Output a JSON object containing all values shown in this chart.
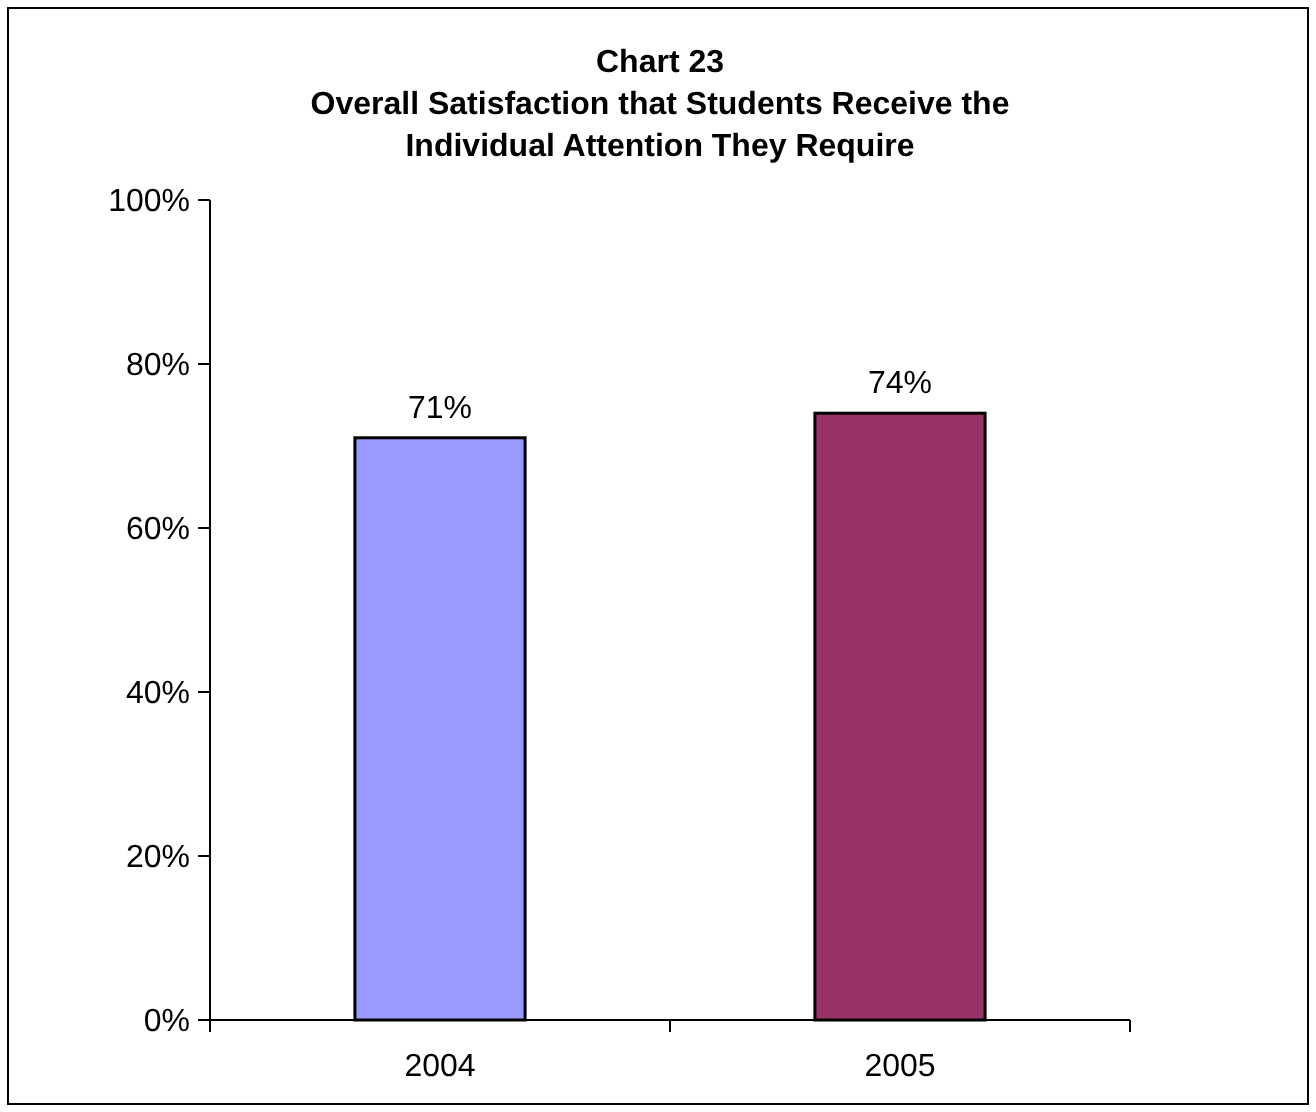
{
  "chart_data": {
    "type": "bar",
    "title": "Chart 23\nOverall Satisfaction that Students Receive the\nIndividual Attention They Require",
    "categories": [
      "2004",
      "2005"
    ],
    "values": [
      71,
      74
    ],
    "colors": [
      "#9999ff",
      "#993366"
    ],
    "ylim": [
      0,
      100
    ],
    "yticks": [
      {
        "value": 0,
        "label": "0%"
      },
      {
        "value": 20,
        "label": "20%"
      },
      {
        "value": 40,
        "label": "40%"
      },
      {
        "value": 60,
        "label": "60%"
      },
      {
        "value": 80,
        "label": "80%"
      },
      {
        "value": 100,
        "label": "100%"
      }
    ],
    "value_labels": [
      "71%",
      "74%"
    ],
    "grid": false
  }
}
